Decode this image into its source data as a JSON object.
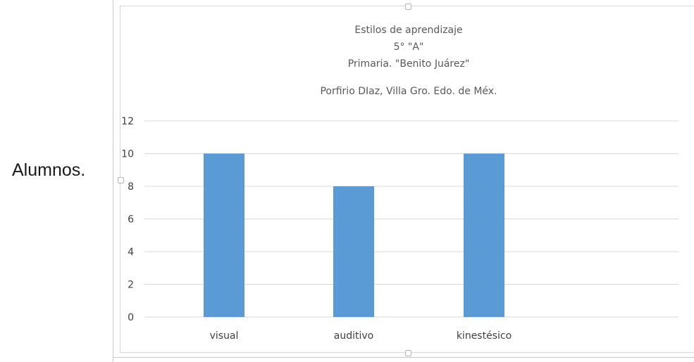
{
  "outside_label": "Alumnos.",
  "chart_data": {
    "type": "bar",
    "title_lines": [
      "Estilos de aprendizaje",
      "5° \"A\"",
      "Primaria. \"Benito Juárez\"",
      "Porfirio DIaz, Villa Gro. Edo. de Méx."
    ],
    "categories": [
      "visual",
      "auditivo",
      "kinestésico"
    ],
    "values": [
      10,
      8,
      10
    ],
    "xlabel": "",
    "ylabel": "",
    "ylim": [
      0,
      12
    ],
    "yticks": [
      0,
      2,
      4,
      6,
      8,
      10,
      12
    ],
    "grid": true,
    "legend": "none",
    "colors": {
      "bar": "#5b9bd5",
      "grid": "#d9d9d9",
      "text": "#404040",
      "title": "#595959"
    }
  }
}
